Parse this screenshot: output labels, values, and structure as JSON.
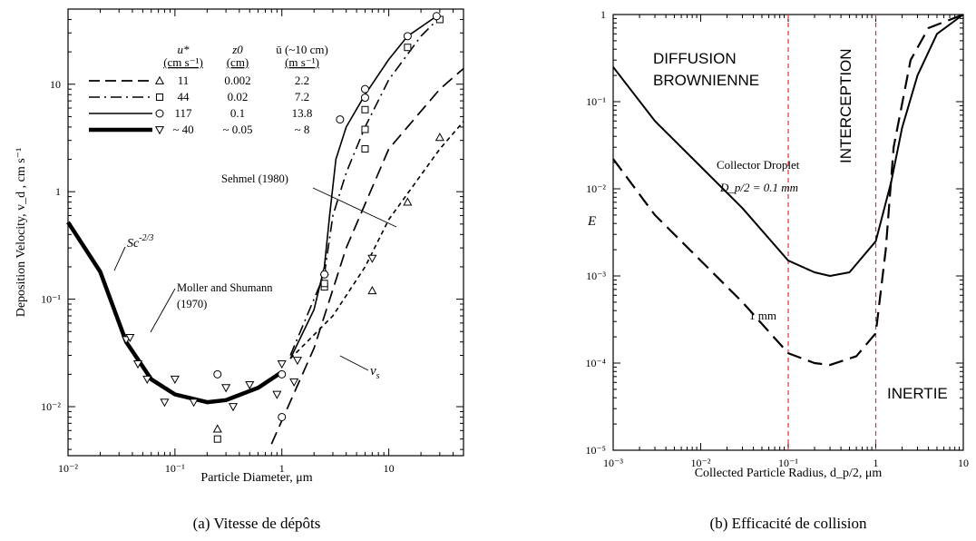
{
  "chart_data": [
    {
      "type": "line",
      "caption": "(a) Vitesse de dépôts",
      "xlabel": "Particle  Diameter,  μm",
      "ylabel": "Deposition  Velocity,  v_d , cm s⁻¹",
      "xscale": "log",
      "yscale": "log",
      "xlim": [
        0.01,
        50
      ],
      "ylim": [
        0.0035,
        50
      ],
      "xticks": [
        {
          "v": 0.01,
          "l": "10⁻²"
        },
        {
          "v": 0.1,
          "l": "10⁻¹"
        },
        {
          "v": 1,
          "l": "1"
        },
        {
          "v": 10,
          "l": "10"
        }
      ],
      "yticks": [
        {
          "v": 0.01,
          "l": "10⁻²"
        },
        {
          "v": 0.1,
          "l": "10⁻¹"
        },
        {
          "v": 1,
          "l": "1"
        },
        {
          "v": 10,
          "l": "10"
        }
      ],
      "legend": {
        "headers": [
          "u*",
          "(cm s⁻¹)",
          "z0",
          "(cm)",
          "ū (~10 cm)",
          "(m s⁻¹)"
        ],
        "rows": [
          {
            "u": "11",
            "z0": "0.002",
            "ubar": "2.2",
            "marker": "triangle"
          },
          {
            "u": "44",
            "z0": "0.02",
            "ubar": "7.2",
            "marker": "square"
          },
          {
            "u": "117",
            "z0": "0.1",
            "ubar": "13.8",
            "marker": "circle"
          },
          {
            "u": "~ 40",
            "z0": "~ 0.05",
            "ubar": "~ 8",
            "marker": "inv-triangle"
          }
        ]
      },
      "annotations": {
        "sc": "Sc",
        "sc_exp": "-2/3",
        "moller": "Moller  and  Shumann",
        "moller_year": "(1970)",
        "sehmel": "Sehmel (1980)",
        "vs": "v",
        "vs_sub": "s"
      },
      "series": [
        {
          "style": "thick",
          "points": [
            [
              0.01,
              0.52
            ],
            [
              0.02,
              0.18
            ],
            [
              0.035,
              0.04
            ],
            [
              0.06,
              0.018
            ],
            [
              0.1,
              0.013
            ],
            [
              0.2,
              0.011
            ],
            [
              0.3,
              0.0115
            ],
            [
              0.6,
              0.015
            ],
            [
              1,
              0.021
            ]
          ]
        },
        {
          "style": "solid",
          "points": [
            [
              1.2,
              0.028
            ],
            [
              2,
              0.08
            ],
            [
              2.5,
              0.2
            ],
            [
              2.8,
              0.6
            ],
            [
              3.2,
              2
            ],
            [
              4,
              4
            ],
            [
              6,
              8
            ],
            [
              10,
              17
            ],
            [
              15,
              28
            ],
            [
              30,
              45
            ]
          ]
        },
        {
          "style": "dashdot",
          "points": [
            [
              1.2,
              0.03
            ],
            [
              2.5,
              0.17
            ],
            [
              3,
              0.6
            ],
            [
              4,
              1.5
            ],
            [
              6,
              4
            ],
            [
              10,
              11
            ],
            [
              20,
              28
            ],
            [
              30,
              42
            ]
          ]
        },
        {
          "style": "dashed",
          "points": [
            [
              0.8,
              0.0045
            ],
            [
              2,
              0.035
            ],
            [
              4,
              0.3
            ],
            [
              10,
              2.5
            ],
            [
              30,
              9
            ],
            [
              50,
              14
            ]
          ]
        },
        {
          "style": "dotted",
          "points": [
            [
              1.2,
              0.028
            ],
            [
              3,
              0.07
            ],
            [
              6,
              0.2
            ],
            [
              10,
              0.55
            ],
            [
              30,
              2.5
            ],
            [
              50,
              4.5
            ]
          ]
        }
      ],
      "markers": [
        {
          "shape": "triangle",
          "pts": [
            [
              0.25,
              0.0062
            ],
            [
              2.5,
              0.18
            ],
            [
              7,
              0.12
            ],
            [
              15,
              0.8
            ],
            [
              30,
              3.2
            ]
          ]
        },
        {
          "shape": "square",
          "pts": [
            [
              0.25,
              0.005
            ],
            [
              2.5,
              0.13
            ],
            [
              2.5,
              0.14
            ],
            [
              6,
              2.5
            ],
            [
              6,
              3.8
            ],
            [
              6,
              5.8
            ],
            [
              15,
              22
            ],
            [
              30,
              40
            ]
          ]
        },
        {
          "shape": "circle",
          "pts": [
            [
              0.25,
              0.02
            ],
            [
              1,
              0.008
            ],
            [
              1,
              0.02
            ],
            [
              2.5,
              0.17
            ],
            [
              3.5,
              4.7
            ],
            [
              6,
              7.5
            ],
            [
              6,
              9
            ],
            [
              15,
              28
            ],
            [
              28,
              43
            ]
          ]
        },
        {
          "shape": "inv",
          "pts": [
            [
              0.035,
              0.042
            ],
            [
              0.038,
              0.044
            ],
            [
              0.045,
              0.025
            ],
            [
              0.055,
              0.018
            ],
            [
              0.08,
              0.011
            ],
            [
              0.1,
              0.018
            ],
            [
              0.15,
              0.011
            ],
            [
              0.3,
              0.015
            ],
            [
              0.35,
              0.01
            ],
            [
              0.5,
              0.016
            ],
            [
              0.9,
              0.013
            ],
            [
              1,
              0.025
            ],
            [
              1.3,
              0.017
            ],
            [
              1.4,
              0.027
            ],
            [
              7,
              0.24
            ]
          ]
        }
      ]
    },
    {
      "type": "line",
      "caption": "(b) Efficacité de collision",
      "xlabel": "Collected  Particle  Radius,  d_p/2,  μm",
      "ylabel": "E",
      "xscale": "log",
      "yscale": "log",
      "xlim": [
        0.001,
        10
      ],
      "ylim": [
        1e-05,
        1
      ],
      "xticks": [
        {
          "v": 0.001,
          "l": "10⁻³"
        },
        {
          "v": 0.01,
          "l": "10⁻²"
        },
        {
          "v": 0.1,
          "l": "10⁻¹"
        },
        {
          "v": 1,
          "l": "1"
        },
        {
          "v": 10,
          "l": "10"
        }
      ],
      "yticks": [
        {
          "v": 1e-05,
          "l": "10⁻⁵"
        },
        {
          "v": 0.0001,
          "l": "10⁻⁴"
        },
        {
          "v": 0.001,
          "l": "10⁻³"
        },
        {
          "v": 0.01,
          "l": "10⁻²"
        },
        {
          "v": 0.1,
          "l": "10⁻¹"
        },
        {
          "v": 1,
          "l": "1"
        }
      ],
      "regions": {
        "diffusion1": "DIFFUSION",
        "diffusion2": "BROWNIENNE",
        "interception": "INTERCEPTION",
        "inertie": "INERTIE"
      },
      "vlines": [
        0.1,
        1
      ],
      "annotations": {
        "collector": "Collector Droplet",
        "dp": "D_p/2 = 0.1 mm",
        "one_mm": "1 mm"
      },
      "series": [
        {
          "name": "0.1 mm",
          "style": "solid",
          "points": [
            [
              0.001,
              0.25
            ],
            [
              0.003,
              0.06
            ],
            [
              0.01,
              0.018
            ],
            [
              0.03,
              0.006
            ],
            [
              0.1,
              0.0015
            ],
            [
              0.2,
              0.0011
            ],
            [
              0.3,
              0.001
            ],
            [
              0.5,
              0.0011
            ],
            [
              1,
              0.0025
            ],
            [
              1.5,
              0.012
            ],
            [
              2,
              0.05
            ],
            [
              3,
              0.2
            ],
            [
              5,
              0.6
            ],
            [
              10,
              1
            ]
          ]
        },
        {
          "name": "1 mm",
          "style": "dashed",
          "points": [
            [
              0.001,
              0.022
            ],
            [
              0.003,
              0.005
            ],
            [
              0.01,
              0.0015
            ],
            [
              0.03,
              0.0005
            ],
            [
              0.1,
              0.00013
            ],
            [
              0.2,
              0.0001
            ],
            [
              0.3,
              9.5e-05
            ],
            [
              0.6,
              0.00012
            ],
            [
              1,
              0.00022
            ],
            [
              1.3,
              0.002
            ],
            [
              1.6,
              0.03
            ],
            [
              2.5,
              0.3
            ],
            [
              4,
              0.7
            ],
            [
              10,
              1
            ]
          ]
        }
      ]
    }
  ]
}
